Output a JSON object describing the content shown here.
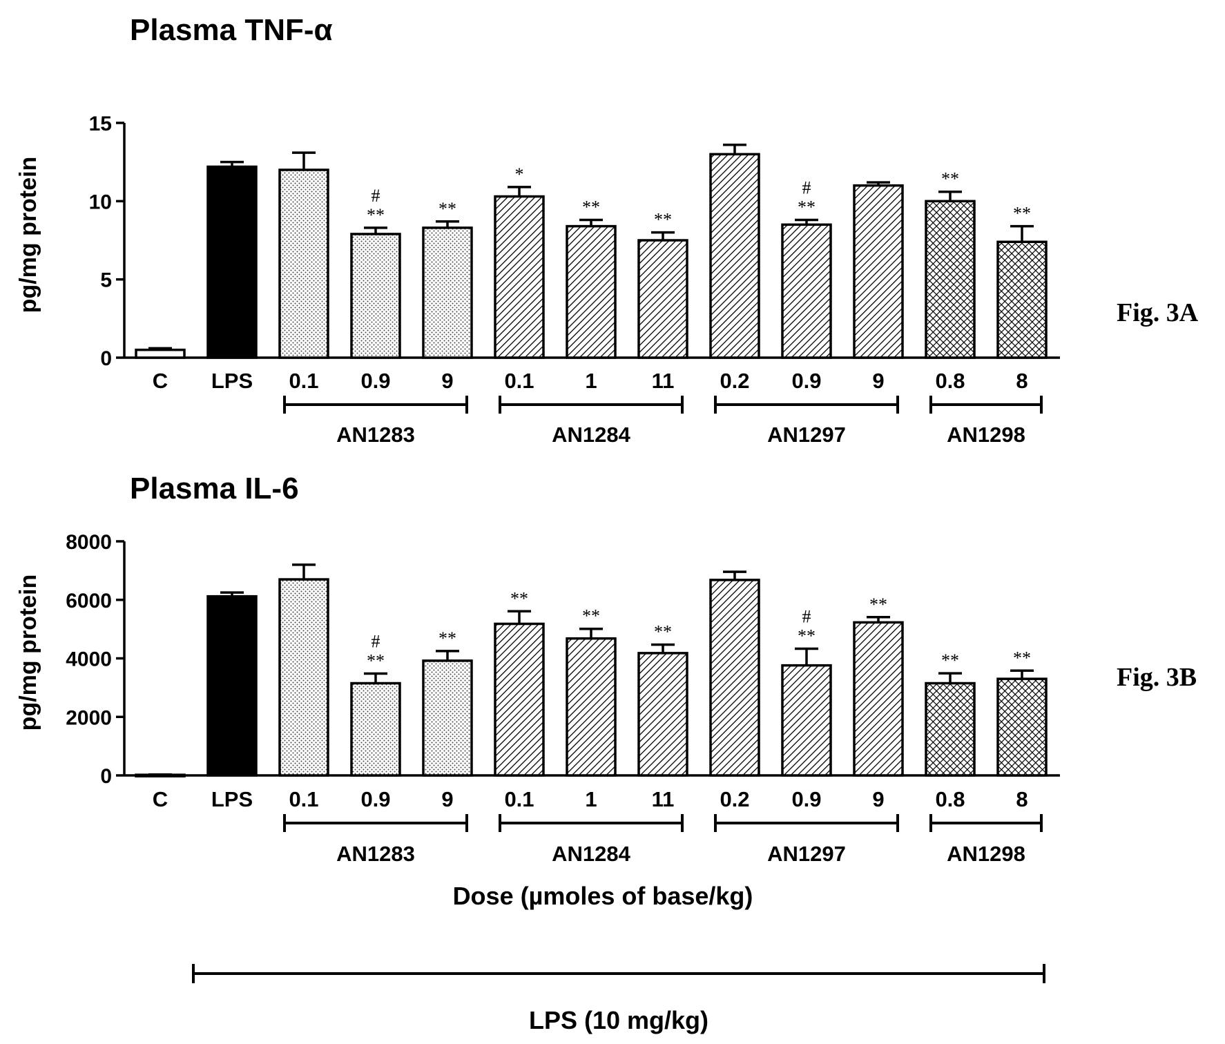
{
  "colors": {
    "ink": "#000000",
    "background": "#ffffff",
    "control_fill": "#ffffff",
    "lps_fill": "#000000"
  },
  "fill_patterns": [
    "open",
    "solid",
    "fine-dots",
    "diagonal-hatch",
    "cross-hatch"
  ],
  "x_axis_label": "Dose (µmoles of base/kg)",
  "lps_bracket_label": "LPS (10 mg/kg)",
  "chart_data": [
    {
      "type": "bar",
      "title": "Plasma TNF-α",
      "figure_label": "Fig. 3A",
      "ylabel": "pg/mg protein",
      "ylim": [
        0,
        15
      ],
      "yticks": [
        "0",
        "5",
        "10",
        "15"
      ],
      "categories": [
        "C",
        "LPS",
        "0.1",
        "0.9",
        "9",
        "0.1",
        "1",
        "11",
        "0.2",
        "0.9",
        "9",
        "0.8",
        "8"
      ],
      "groups": [
        {
          "name": "AN1283",
          "pattern": "fine-dots",
          "bars": [
            2,
            3,
            4
          ]
        },
        {
          "name": "AN1284",
          "pattern": "diagonal-hatch",
          "bars": [
            5,
            6,
            7
          ]
        },
        {
          "name": "AN1297",
          "pattern": "diagonal-hatch",
          "bars": [
            8,
            9,
            10
          ]
        },
        {
          "name": "AN1298",
          "pattern": "cross-hatch",
          "bars": [
            11,
            12
          ]
        }
      ],
      "values": [
        0.5,
        12.2,
        12.0,
        7.9,
        8.3,
        10.3,
        8.4,
        7.5,
        13.0,
        8.5,
        11.0,
        10.0,
        7.4
      ],
      "errors": [
        0.1,
        0.3,
        1.1,
        0.4,
        0.4,
        0.6,
        0.4,
        0.5,
        0.6,
        0.3,
        0.2,
        0.6,
        1.0
      ],
      "annotations": [
        "",
        "",
        "",
        "#\n**",
        "**",
        "*",
        "**",
        "**",
        "",
        "#\n**",
        "",
        "**",
        "**"
      ]
    },
    {
      "type": "bar",
      "title": "Plasma IL-6",
      "figure_label": "Fig. 3B",
      "ylabel": "pg/mg protein",
      "ylim": [
        0,
        8000
      ],
      "yticks": [
        "0",
        "2000",
        "4000",
        "6000",
        "8000"
      ],
      "categories": [
        "C",
        "LPS",
        "0.1",
        "0.9",
        "9",
        "0.1",
        "1",
        "11",
        "0.2",
        "0.9",
        "9",
        "0.8",
        "8"
      ],
      "groups": [
        {
          "name": "AN1283",
          "pattern": "fine-dots",
          "bars": [
            2,
            3,
            4
          ]
        },
        {
          "name": "AN1284",
          "pattern": "diagonal-hatch",
          "bars": [
            5,
            6,
            7
          ]
        },
        {
          "name": "AN1297",
          "pattern": "diagonal-hatch",
          "bars": [
            8,
            9,
            10
          ]
        },
        {
          "name": "AN1298",
          "pattern": "cross-hatch",
          "bars": [
            11,
            12
          ]
        }
      ],
      "values": [
        20,
        6120,
        6700,
        3150,
        3920,
        5180,
        4680,
        4180,
        6680,
        3760,
        5230,
        3150,
        3300
      ],
      "errors": [
        10,
        130,
        500,
        330,
        330,
        430,
        330,
        290,
        280,
        570,
        180,
        340,
        280
      ],
      "annotations": [
        "",
        "",
        "",
        "#\n**",
        "**",
        "**",
        "**",
        "**",
        "",
        "#\n**",
        "**",
        "**",
        "**"
      ]
    }
  ]
}
